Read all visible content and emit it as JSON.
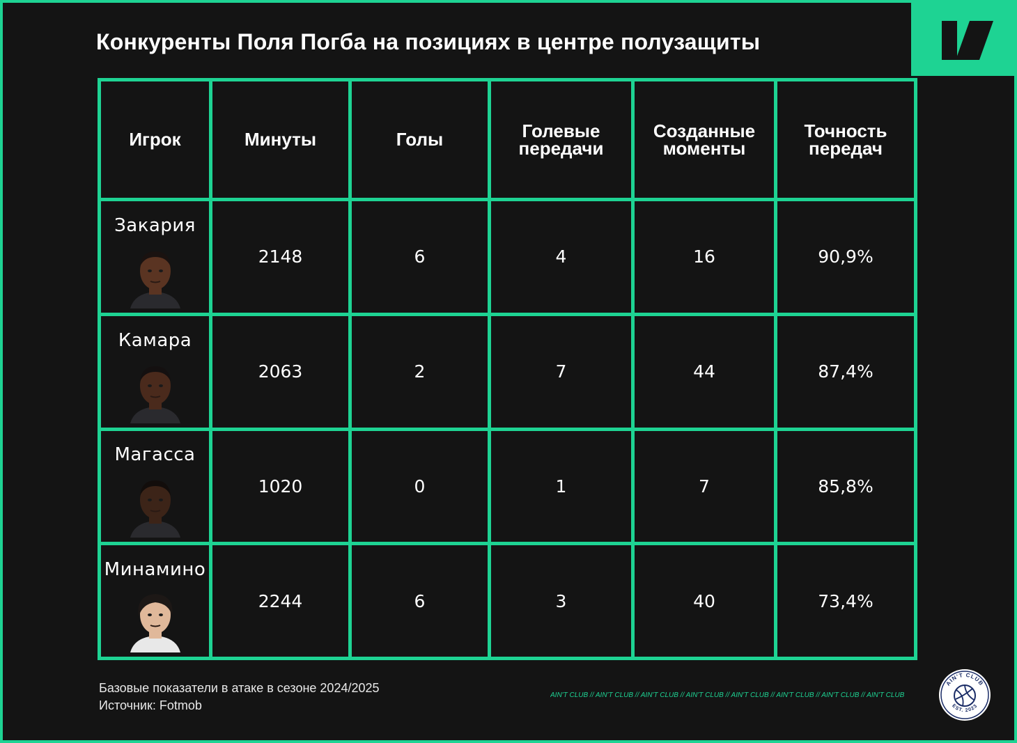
{
  "title": "Конкуренты Поля Погба на позициях в центре полузащиты",
  "colors": {
    "accent": "#1ed393",
    "background": "#141414",
    "text": "#ffffff"
  },
  "icons": {
    "brand": "diagonal-bars-logo-icon",
    "club": "aint-club-ball-seal-icon"
  },
  "chart_data": {
    "type": "table",
    "columns": [
      {
        "label": "Игрок"
      },
      {
        "label": "Минуты"
      },
      {
        "label": "Голы"
      },
      {
        "label": "Голевые\nпередачи"
      },
      {
        "label": "Созданные\nмоменты"
      },
      {
        "label": "Точность\nпередач"
      }
    ],
    "rows": [
      {
        "player": "Закария",
        "minutes": "2148",
        "goals": "6",
        "assists": "4",
        "chances": "16",
        "accuracy": "90,9%"
      },
      {
        "player": "Камара",
        "minutes": "2063",
        "goals": "2",
        "assists": "7",
        "chances": "44",
        "accuracy": "87,4%"
      },
      {
        "player": "Магасса",
        "minutes": "1020",
        "goals": "0",
        "assists": "1",
        "chances": "7",
        "accuracy": "85,8%"
      },
      {
        "player": "Минамино",
        "minutes": "2244",
        "goals": "6",
        "assists": "3",
        "chances": "40",
        "accuracy": "73,4%"
      }
    ]
  },
  "footnote": {
    "line1": "Базовые показатели в атаке в сезоне 2024/2025",
    "line2": "Источник: Fotmob"
  },
  "watermark": "AIN'T CLUB // AIN'T CLUB // AIN'T CLUB // AIN'T CLUB // AIN'T CLUB // AIN'T CLUB // AIN'T CLUB // AIN'T CLUB",
  "logo_text": {
    "top": "AIN'T CLUB",
    "bottom": "EST. 2023"
  }
}
